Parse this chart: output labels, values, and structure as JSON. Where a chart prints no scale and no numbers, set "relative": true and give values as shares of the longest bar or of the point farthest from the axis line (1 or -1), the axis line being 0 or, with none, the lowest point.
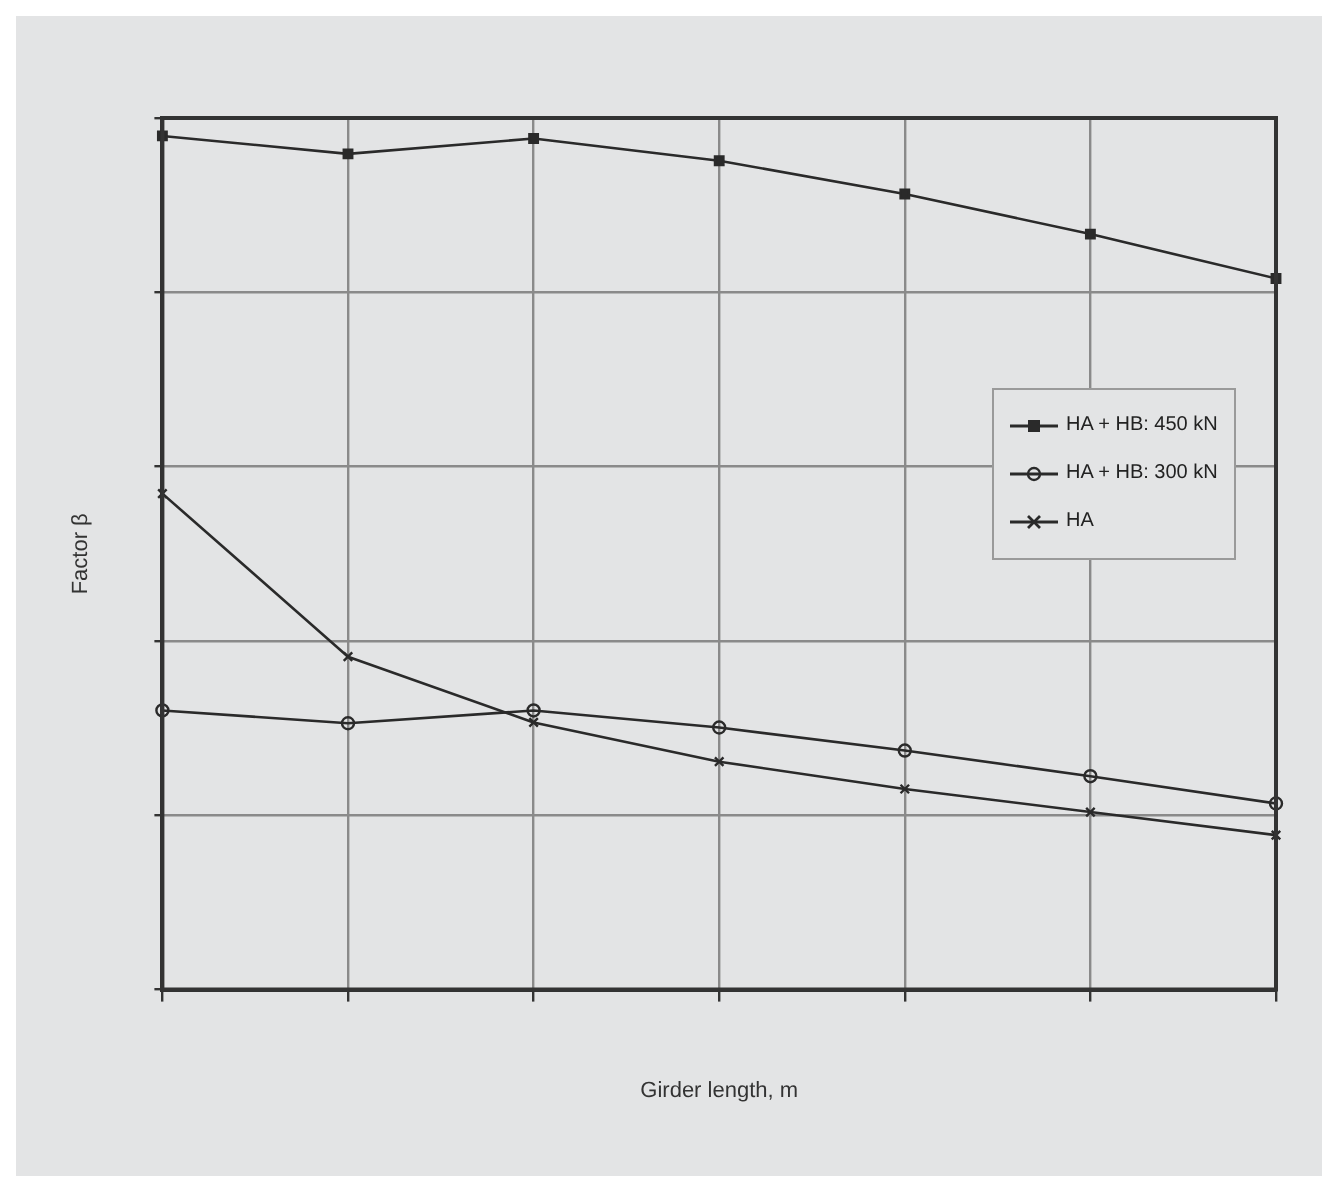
{
  "chart_data": {
    "type": "line",
    "relative": true,
    "xlabel": "Girder length, m",
    "ylabel": "Factor β",
    "categories": [
      null,
      null,
      null,
      null,
      null,
      null,
      null
    ],
    "grid": true,
    "legend": "right",
    "line_style": "solid",
    "series": [
      {
        "name": "HA + HB: 450 kN",
        "color": "#2a2a2a",
        "marker": "square",
        "values": [
          1,
          0.979,
          0.997,
          0.971,
          0.932,
          0.885,
          0.833
        ]
      },
      {
        "name": "HA + HB: 300 kN",
        "color": "#2a2a2a",
        "marker": "circle",
        "values": [
          0.327,
          0.312,
          0.327,
          0.307,
          0.28,
          0.25,
          0.218
        ]
      },
      {
        "name": "HA",
        "color": "#2a2a2a",
        "marker": "cross",
        "values": [
          0.581,
          0.39,
          0.313,
          0.267,
          0.235,
          0.208,
          0.181
        ]
      }
    ]
  }
}
